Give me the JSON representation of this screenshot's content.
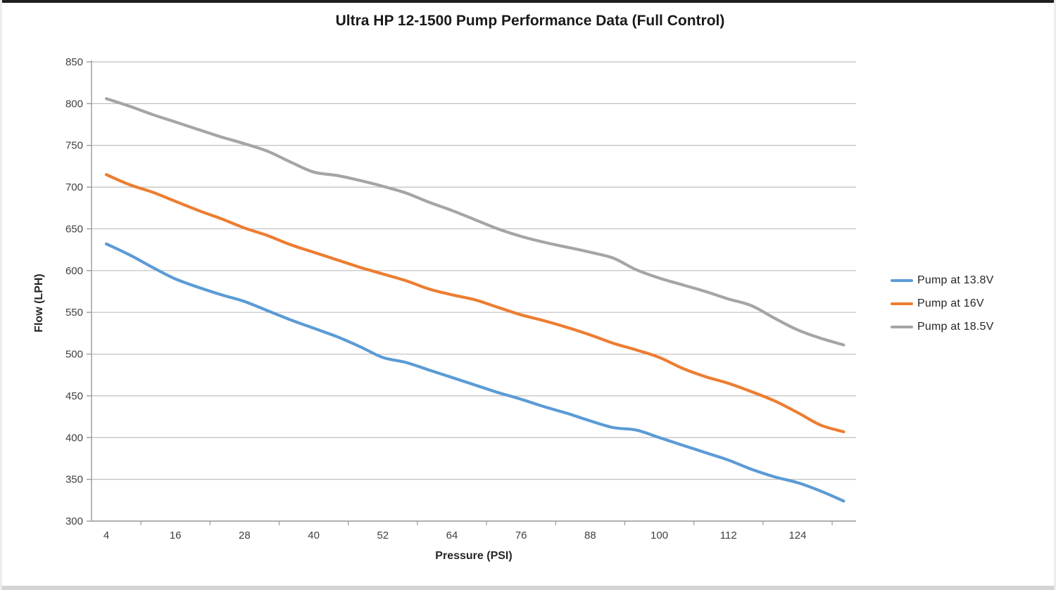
{
  "page": {
    "background": "#ffffff",
    "top_bar_color": "#1e1e1e",
    "bottom_bar_color": "#d4d4d4",
    "text_color": "#404040",
    "gridline_color": "#bfbfbf",
    "axis_color": "#9b9b9b"
  },
  "chart_data": {
    "type": "line",
    "title": "Ultra HP 12-1500 Pump Performance Data (Full Control)",
    "xlabel": "Pressure (PSI)",
    "ylabel": "Flow (LPH)",
    "x": [
      4,
      8,
      12,
      16,
      20,
      24,
      28,
      32,
      36,
      40,
      44,
      48,
      52,
      56,
      60,
      64,
      68,
      72,
      76,
      80,
      84,
      88,
      92,
      96,
      100,
      104,
      108,
      112,
      116,
      120,
      124,
      128,
      132
    ],
    "series": [
      {
        "name": "Pump at 13.8V",
        "color": "#5B9BD5",
        "values": [
          632,
          619,
          604,
          590,
          580,
          571,
          563,
          552,
          541,
          531,
          521,
          509,
          496,
          490,
          481,
          472,
          463,
          454,
          446,
          437,
          429,
          420,
          412,
          409,
          400,
          391,
          382,
          373,
          362,
          353,
          346,
          336,
          324
        ]
      },
      {
        "name": "Pump at 16V",
        "color": "#ED7D31",
        "values": [
          715,
          703,
          694,
          683,
          672,
          662,
          651,
          642,
          631,
          622,
          613,
          604,
          596,
          588,
          578,
          571,
          565,
          556,
          547,
          540,
          532,
          523,
          513,
          505,
          496,
          483,
          473,
          465,
          455,
          444,
          430,
          415,
          407
        ]
      },
      {
        "name": "Pump at 18.5V",
        "color": "#A5A5A5",
        "values": [
          806,
          797,
          787,
          778,
          769,
          760,
          752,
          743,
          730,
          718,
          714,
          708,
          701,
          693,
          682,
          672,
          661,
          650,
          641,
          634,
          628,
          622,
          615,
          601,
          591,
          583,
          575,
          566,
          558,
          543,
          529,
          519,
          511
        ]
      }
    ],
    "x_tick_labels": [
      4,
      16,
      28,
      40,
      52,
      64,
      76,
      88,
      100,
      112,
      124
    ],
    "y_tick_labels": [
      850,
      800,
      750,
      700,
      650,
      600,
      550,
      500,
      450,
      400,
      350,
      300
    ],
    "ylim": [
      300,
      850
    ],
    "xlim": [
      1.4,
      134
    ],
    "grid": "horizontal",
    "legend_position": "right",
    "smooth": true
  }
}
